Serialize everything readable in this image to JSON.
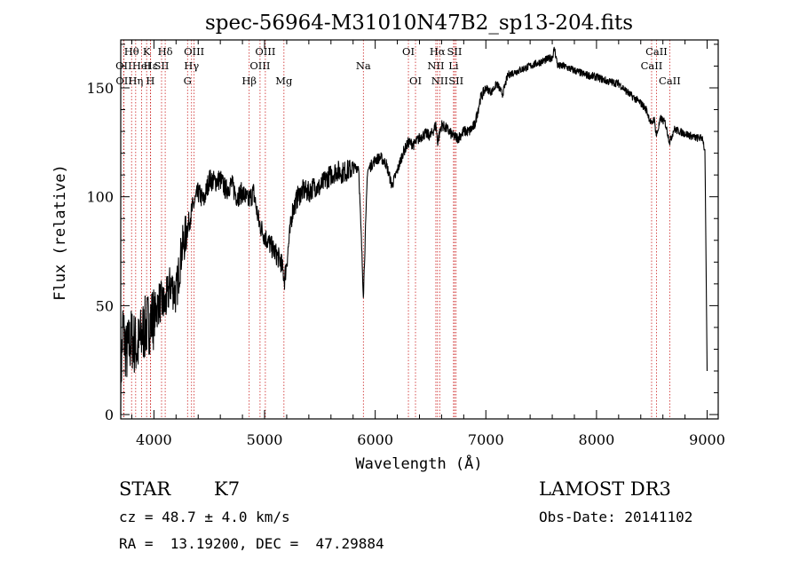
{
  "chart_data": {
    "type": "line",
    "title": "spec-56964-M31010N47B2_sp13-204.fits",
    "xlabel": "Wavelength (Å)",
    "ylabel": "Flux (relative)",
    "xlim": [
      3700,
      9100
    ],
    "ylim": [
      -2,
      172
    ],
    "xticks": [
      4000,
      5000,
      6000,
      7000,
      8000,
      9000
    ],
    "yticks": [
      0,
      50,
      100,
      150
    ],
    "spectrum_knots": [
      [
        3700,
        15
      ],
      [
        3720,
        40
      ],
      [
        3750,
        28
      ],
      [
        3800,
        35
      ],
      [
        3850,
        30
      ],
      [
        3900,
        38
      ],
      [
        3950,
        42
      ],
      [
        4000,
        45
      ],
      [
        4050,
        52
      ],
      [
        4100,
        50
      ],
      [
        4150,
        60
      ],
      [
        4200,
        55
      ],
      [
        4250,
        75
      ],
      [
        4300,
        85
      ],
      [
        4350,
        95
      ],
      [
        4400,
        102
      ],
      [
        4450,
        98
      ],
      [
        4500,
        108
      ],
      [
        4550,
        107
      ],
      [
        4600,
        108
      ],
      [
        4650,
        103
      ],
      [
        4700,
        106
      ],
      [
        4750,
        100
      ],
      [
        4800,
        102
      ],
      [
        4850,
        98
      ],
      [
        4900,
        102
      ],
      [
        4950,
        88
      ],
      [
        5000,
        82
      ],
      [
        5050,
        78
      ],
      [
        5100,
        74
      ],
      [
        5150,
        70
      ],
      [
        5180,
        62
      ],
      [
        5200,
        70
      ],
      [
        5250,
        93
      ],
      [
        5300,
        100
      ],
      [
        5350,
        103
      ],
      [
        5400,
        102
      ],
      [
        5450,
        105
      ],
      [
        5500,
        104
      ],
      [
        5550,
        108
      ],
      [
        5600,
        110
      ],
      [
        5650,
        112
      ],
      [
        5700,
        111
      ],
      [
        5750,
        112
      ],
      [
        5800,
        113
      ],
      [
        5850,
        114
      ],
      [
        5893,
        55
      ],
      [
        5930,
        112
      ],
      [
        6000,
        117
      ],
      [
        6050,
        118
      ],
      [
        6100,
        115
      ],
      [
        6150,
        105
      ],
      [
        6200,
        112
      ],
      [
        6250,
        120
      ],
      [
        6300,
        125
      ],
      [
        6350,
        124
      ],
      [
        6400,
        127
      ],
      [
        6450,
        129
      ],
      [
        6500,
        128
      ],
      [
        6550,
        133
      ],
      [
        6563,
        125
      ],
      [
        6600,
        133
      ],
      [
        6650,
        131
      ],
      [
        6700,
        128
      ],
      [
        6750,
        127
      ],
      [
        6800,
        130
      ],
      [
        6850,
        130
      ],
      [
        6900,
        133
      ],
      [
        6950,
        145
      ],
      [
        7000,
        150
      ],
      [
        7050,
        148
      ],
      [
        7100,
        152
      ],
      [
        7150,
        147
      ],
      [
        7200,
        156
      ],
      [
        7300,
        158
      ],
      [
        7400,
        160
      ],
      [
        7500,
        162
      ],
      [
        7550,
        163
      ],
      [
        7600,
        164
      ],
      [
        7620,
        168
      ],
      [
        7650,
        160
      ],
      [
        7700,
        160
      ],
      [
        7800,
        158
      ],
      [
        7900,
        156
      ],
      [
        8000,
        155
      ],
      [
        8100,
        153
      ],
      [
        8200,
        152
      ],
      [
        8300,
        147
      ],
      [
        8400,
        143
      ],
      [
        8450,
        140
      ],
      [
        8498,
        133
      ],
      [
        8520,
        136
      ],
      [
        8542,
        128
      ],
      [
        8580,
        136
      ],
      [
        8620,
        134
      ],
      [
        8662,
        125
      ],
      [
        8700,
        131
      ],
      [
        8800,
        129
      ],
      [
        8900,
        127
      ],
      [
        8960,
        127
      ],
      [
        8980,
        120
      ],
      [
        9000,
        20
      ]
    ],
    "lines": [
      {
        "label": "Hθ",
        "wavelength": 3798,
        "row": 1
      },
      {
        "label": "OII",
        "wavelength": 3727,
        "row": 2
      },
      {
        "label": "OII",
        "wavelength": 3729,
        "row": 3
      },
      {
        "label": "K",
        "wavelength": 3934,
        "row": 1
      },
      {
        "label": "Hε",
        "wavelength": 3970,
        "row": 2
      },
      {
        "label": "Hη",
        "wavelength": 3835,
        "row": 3
      },
      {
        "label": "HeI",
        "wavelength": 3889,
        "row": 2
      },
      {
        "label": "SII",
        "wavelength": 4069,
        "row": 2
      },
      {
        "label": "H",
        "wavelength": 3968,
        "row": 3
      },
      {
        "label": "Hδ",
        "wavelength": 4102,
        "row": 1
      },
      {
        "label": "OIII",
        "wavelength": 4363,
        "row": 1
      },
      {
        "label": "Hγ",
        "wavelength": 4340,
        "row": 2
      },
      {
        "label": "G",
        "wavelength": 4304,
        "row": 3
      },
      {
        "label": "OIII",
        "wavelength": 5007,
        "row": 1
      },
      {
        "label": "OIII",
        "wavelength": 4959,
        "row": 2
      },
      {
        "label": "Hβ",
        "wavelength": 4861,
        "row": 3
      },
      {
        "label": "Mg",
        "wavelength": 5175,
        "row": 3
      },
      {
        "label": "Na",
        "wavelength": 5893,
        "row": 2
      },
      {
        "label": "OI",
        "wavelength": 6300,
        "row": 1
      },
      {
        "label": "OI",
        "wavelength": 6364,
        "row": 3
      },
      {
        "label": "Hα",
        "wavelength": 6563,
        "row": 1
      },
      {
        "label": "NII",
        "wavelength": 6548,
        "row": 2
      },
      {
        "label": "NII",
        "wavelength": 6583,
        "row": 3
      },
      {
        "label": "SII",
        "wavelength": 6717,
        "row": 1
      },
      {
        "label": "Li",
        "wavelength": 6708,
        "row": 2
      },
      {
        "label": "SII",
        "wavelength": 6731,
        "row": 3
      },
      {
        "label": "CaII",
        "wavelength": 8542,
        "row": 1
      },
      {
        "label": "CaII",
        "wavelength": 8498,
        "row": 2
      },
      {
        "label": "CaII",
        "wavelength": 8662,
        "row": 3
      }
    ]
  },
  "info": {
    "class": "STAR",
    "subclass": "K7",
    "survey": "LAMOST DR3",
    "cz": "cz = 48.7 ± 4.0 km/s",
    "obs_date": "Obs-Date: 20141102",
    "coords": "RA =  13.19200, DEC =  47.29884"
  },
  "colors": {
    "spectrum": "#000000",
    "line_marker": "#cc2222",
    "axis": "#000000"
  }
}
